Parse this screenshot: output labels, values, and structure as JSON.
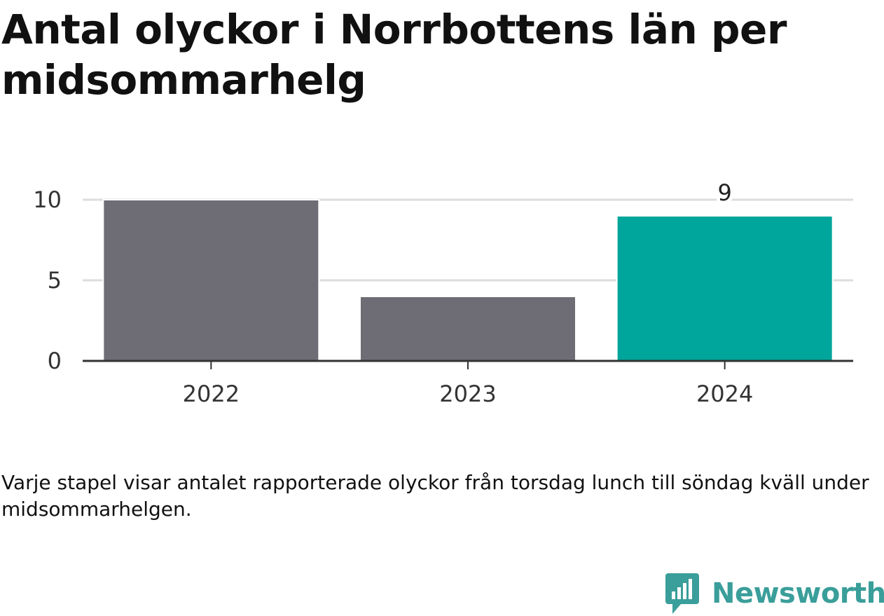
{
  "chart_data": {
    "type": "bar",
    "title": "Antal olyckor i Norrbottens län per midsommarhelg",
    "categories": [
      "2022",
      "2023",
      "2024"
    ],
    "values": [
      10,
      4,
      9
    ],
    "highlight_index": 2,
    "data_labels": [
      {
        "index": 2,
        "text": "9"
      }
    ],
    "ylim": [
      0,
      10
    ],
    "yticks": [
      0,
      5,
      10
    ],
    "grid": true,
    "xlabel": "",
    "ylabel": "",
    "colors": {
      "bar": "#6e6d75",
      "highlight": "#00a59b",
      "grid": "#dddddd",
      "axis": "#333333"
    }
  },
  "caption": "Varje stapel visar antalet rapporterade olyckor från torsdag lunch till söndag kväll under midsommarhelgen.",
  "logo": {
    "wordmark": "Newsworthy",
    "icon": "bar-chart-speech-bubble-icon",
    "color": "#3a9e9a"
  }
}
